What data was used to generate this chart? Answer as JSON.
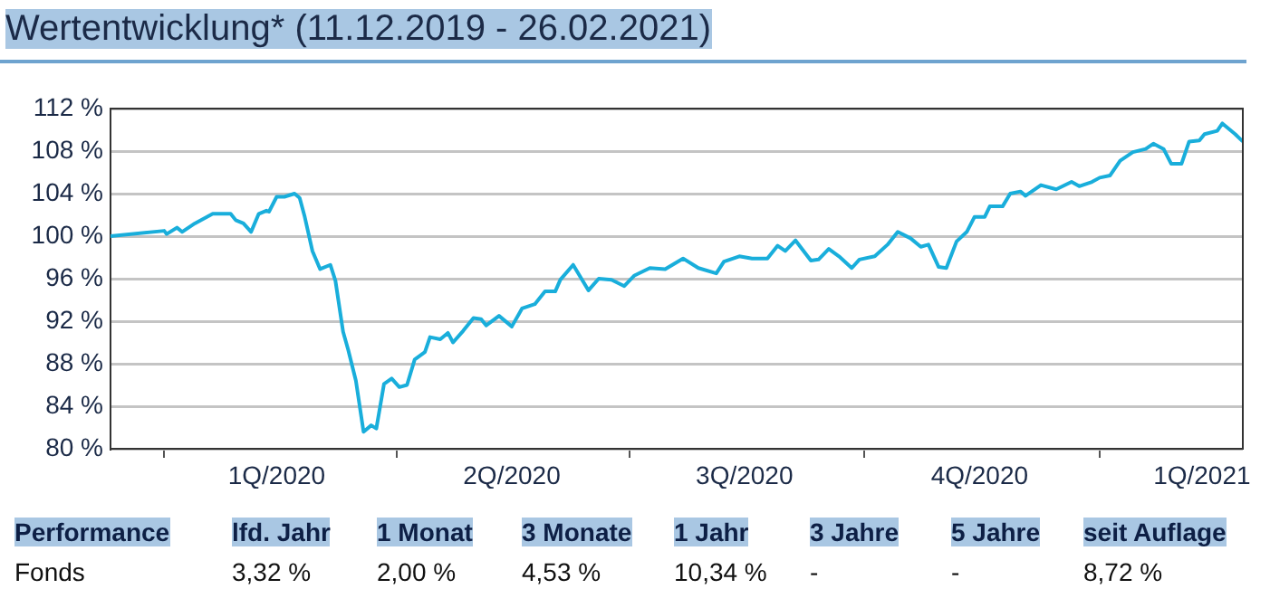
{
  "chart_data": {
    "type": "line",
    "title": "Wertentwicklung* (11.12.2019 - 26.02.2021)",
    "x": [
      "2019-12-11",
      "2020-01-01",
      "2020-01-02",
      "2020-01-06",
      "2020-01-08",
      "2020-01-13",
      "2020-01-20",
      "2020-01-27",
      "2020-01-29",
      "2020-02-01",
      "2020-02-04",
      "2020-02-07",
      "2020-02-10",
      "2020-02-11",
      "2020-02-14",
      "2020-02-17",
      "2020-02-21",
      "2020-02-23",
      "2020-02-25",
      "2020-02-28",
      "2020-03-02",
      "2020-03-06",
      "2020-03-08",
      "2020-03-11",
      "2020-03-13",
      "2020-03-16",
      "2020-03-19",
      "2020-03-22",
      "2020-03-24",
      "2020-03-27",
      "2020-03-30",
      "2020-04-02",
      "2020-04-05",
      "2020-04-08",
      "2020-04-12",
      "2020-04-14",
      "2020-04-18",
      "2020-04-21",
      "2020-04-23",
      "2020-04-27",
      "2020-05-01",
      "2020-05-04",
      "2020-05-06",
      "2020-05-11",
      "2020-05-16",
      "2020-05-20",
      "2020-05-25",
      "2020-05-29",
      "2020-06-02",
      "2020-06-04",
      "2020-06-09",
      "2020-06-15",
      "2020-06-19",
      "2020-06-24",
      "2020-06-29",
      "2020-07-03",
      "2020-07-09",
      "2020-07-15",
      "2020-07-22",
      "2020-07-28",
      "2020-08-04",
      "2020-08-07",
      "2020-08-13",
      "2020-08-18",
      "2020-08-24",
      "2020-08-28",
      "2020-08-31",
      "2020-09-04",
      "2020-09-10",
      "2020-09-13",
      "2020-09-17",
      "2020-09-21",
      "2020-09-26",
      "2020-09-29",
      "2020-10-05",
      "2020-10-10",
      "2020-10-14",
      "2020-10-19",
      "2020-10-23",
      "2020-10-26",
      "2020-10-30",
      "2020-11-02",
      "2020-11-06",
      "2020-11-10",
      "2020-11-13",
      "2020-11-17",
      "2020-11-19",
      "2020-11-24",
      "2020-11-27",
      "2020-12-01",
      "2020-12-03",
      "2020-12-09",
      "2020-12-15",
      "2020-12-21",
      "2020-12-24",
      "2020-12-29",
      "2021-01-01",
      "2021-01-05",
      "2021-01-09",
      "2021-01-14",
      "2021-01-19",
      "2021-01-22",
      "2021-01-26",
      "2021-01-29",
      "2021-02-02",
      "2021-02-05",
      "2021-02-09",
      "2021-02-11",
      "2021-02-16",
      "2021-02-18",
      "2021-02-23",
      "2021-02-26"
    ],
    "values": [
      100.0,
      100.5,
      100.2,
      100.8,
      100.4,
      101.2,
      102.1,
      102.1,
      101.5,
      101.2,
      100.4,
      102.1,
      102.4,
      102.3,
      103.7,
      103.7,
      104.0,
      103.6,
      101.8,
      98.6,
      96.9,
      97.3,
      95.8,
      91.0,
      89.3,
      86.4,
      81.6,
      82.2,
      81.9,
      86.1,
      86.6,
      85.8,
      86.0,
      88.4,
      89.1,
      90.5,
      90.3,
      90.9,
      90.0,
      91.1,
      92.3,
      92.2,
      91.6,
      92.5,
      91.5,
      93.2,
      93.6,
      94.8,
      94.8,
      95.9,
      97.3,
      94.9,
      96.0,
      95.9,
      95.3,
      96.3,
      97.0,
      96.9,
      97.9,
      97.0,
      96.5,
      97.6,
      98.1,
      97.9,
      97.9,
      99.1,
      98.6,
      99.6,
      97.7,
      97.8,
      98.8,
      98.1,
      97.0,
      97.8,
      98.1,
      99.2,
      100.4,
      99.8,
      99.0,
      99.2,
      97.1,
      97.0,
      99.5,
      100.4,
      101.8,
      101.8,
      102.8,
      102.8,
      104.0,
      104.2,
      103.8,
      104.8,
      104.4,
      105.1,
      104.7,
      105.1,
      105.5,
      105.7,
      107.1,
      107.9,
      108.2,
      108.7,
      108.2,
      106.8,
      106.8,
      108.9,
      109.0,
      109.6,
      109.9,
      110.6,
      109.6,
      108.9
    ],
    "color": "#19aedb",
    "xlim": [
      "2019-12-11",
      "2021-02-26"
    ],
    "xticks": [
      {
        "value": "2020-01-01",
        "label": null
      },
      {
        "value": "2020-02-14",
        "label": "1Q/2020"
      },
      {
        "value": "2020-04-01",
        "label": null
      },
      {
        "value": "2020-05-16",
        "label": "2Q/2020"
      },
      {
        "value": "2020-07-01",
        "label": null
      },
      {
        "value": "2020-08-15",
        "label": "3Q/2020"
      },
      {
        "value": "2020-10-01",
        "label": null
      },
      {
        "value": "2020-11-15",
        "label": "4Q/2020"
      },
      {
        "value": "2021-01-01",
        "label": null
      },
      {
        "value": "2021-02-10",
        "label": "1Q/2021"
      }
    ],
    "ylim": [
      80,
      112
    ],
    "yticks": [
      {
        "value": 80,
        "label": "80 %"
      },
      {
        "value": 84,
        "label": "84 %"
      },
      {
        "value": 88,
        "label": "88 %"
      },
      {
        "value": 92,
        "label": "92 %"
      },
      {
        "value": 96,
        "label": "96 %"
      },
      {
        "value": 100,
        "label": "100 %"
      },
      {
        "value": 104,
        "label": "104 %"
      },
      {
        "value": 108,
        "label": "108 %"
      },
      {
        "value": 112,
        "label": "112 %"
      }
    ],
    "grid": "y",
    "annotations": [
      "Performance",
      "lfd. Jahr",
      "1 Monat",
      "3 Monate",
      "1 Jahr",
      "3 Jahre",
      "5 Jahre",
      "seit Auflage",
      "Fonds",
      "3,32 %",
      "2,00 %",
      "4,53 %",
      "10,34 %",
      "-",
      "-",
      "8,72 %"
    ]
  }
}
